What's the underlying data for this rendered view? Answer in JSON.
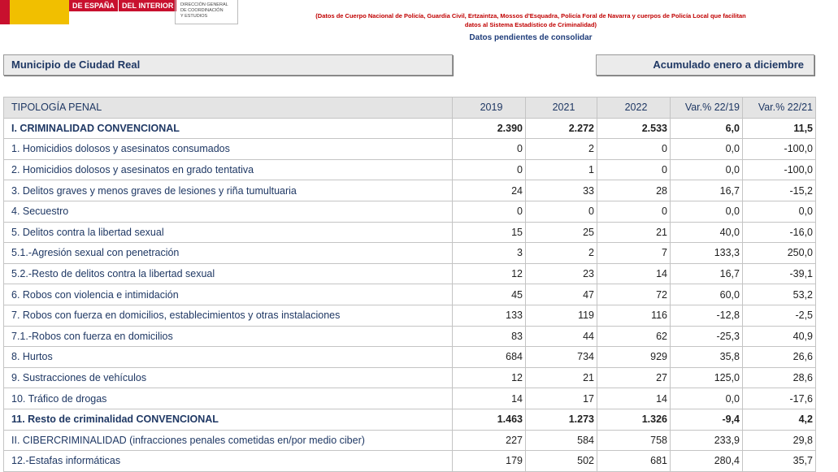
{
  "header": {
    "logo": [
      "DE ESPAÑA",
      "DEL INTERIOR"
    ],
    "directorate": [
      "DIRECCIÓN GENERAL",
      "DE COORDINACIÓN",
      "Y ESTUDIOS"
    ],
    "source_note": [
      "(Datos de Cuerpo Nacional de Policía, Guardia Civil, Ertzaintza, Mossos d'Esquadra, Policía Foral de Navarra y cuerpos de Policía Local que facilitan",
      "datos al Sistema Estadístico de Criminalidad)"
    ],
    "status": "Datos pendientes de consolidar"
  },
  "filters": {
    "municipality": "Municipio de Ciudad Real",
    "period": "Acumulado enero a diciembre"
  },
  "table": {
    "columns": [
      "TIPOLOGÍA PENAL",
      "2019",
      "2021",
      "2022",
      "Var.% 22/19",
      "Var.% 22/21"
    ],
    "bold_rows": [
      0,
      14
    ],
    "rows": [
      [
        "I. CRIMINALIDAD CONVENCIONAL",
        "2.390",
        "2.272",
        "2.533",
        "6,0",
        "11,5"
      ],
      [
        "1. Homicidios dolosos y asesinatos consumados",
        "0",
        "2",
        "0",
        "0,0",
        "-100,0"
      ],
      [
        "2. Homicidios dolosos y asesinatos en grado tentativa",
        "0",
        "1",
        "0",
        "0,0",
        "-100,0"
      ],
      [
        "3. Delitos graves y menos graves de lesiones y riña tumultuaria",
        "24",
        "33",
        "28",
        "16,7",
        "-15,2"
      ],
      [
        "4. Secuestro",
        "0",
        "0",
        "0",
        "0,0",
        "0,0"
      ],
      [
        "5. Delitos contra la libertad sexual",
        "15",
        "25",
        "21",
        "40,0",
        "-16,0"
      ],
      [
        "5.1.-Agresión sexual con penetración",
        "3",
        "2",
        "7",
        "133,3",
        "250,0"
      ],
      [
        "5.2.-Resto de delitos contra la libertad sexual",
        "12",
        "23",
        "14",
        "16,7",
        "-39,1"
      ],
      [
        "6. Robos con violencia e intimidación",
        "45",
        "47",
        "72",
        "60,0",
        "53,2"
      ],
      [
        "7. Robos con fuerza en domicilios, establecimientos y otras instalaciones",
        "133",
        "119",
        "116",
        "-12,8",
        "-2,5"
      ],
      [
        "7.1.-Robos con fuerza en domicilios",
        "83",
        "44",
        "62",
        "-25,3",
        "40,9"
      ],
      [
        "8. Hurtos",
        "684",
        "734",
        "929",
        "35,8",
        "26,6"
      ],
      [
        "9. Sustracciones de vehículos",
        "12",
        "21",
        "27",
        "125,0",
        "28,6"
      ],
      [
        "10. Tráfico de drogas",
        "14",
        "17",
        "14",
        "0,0",
        "-17,6"
      ],
      [
        "11. Resto de criminalidad CONVENCIONAL",
        "1.463",
        "1.273",
        "1.326",
        "-9,4",
        "4,2"
      ],
      [
        "II. CIBERCRIMINALIDAD (infracciones penales cometidas en/por medio ciber)",
        "227",
        "584",
        "758",
        "233,9",
        "29,8"
      ],
      [
        "12.-Estafas informáticas",
        "179",
        "502",
        "681",
        "280,4",
        "35,7"
      ]
    ]
  }
}
